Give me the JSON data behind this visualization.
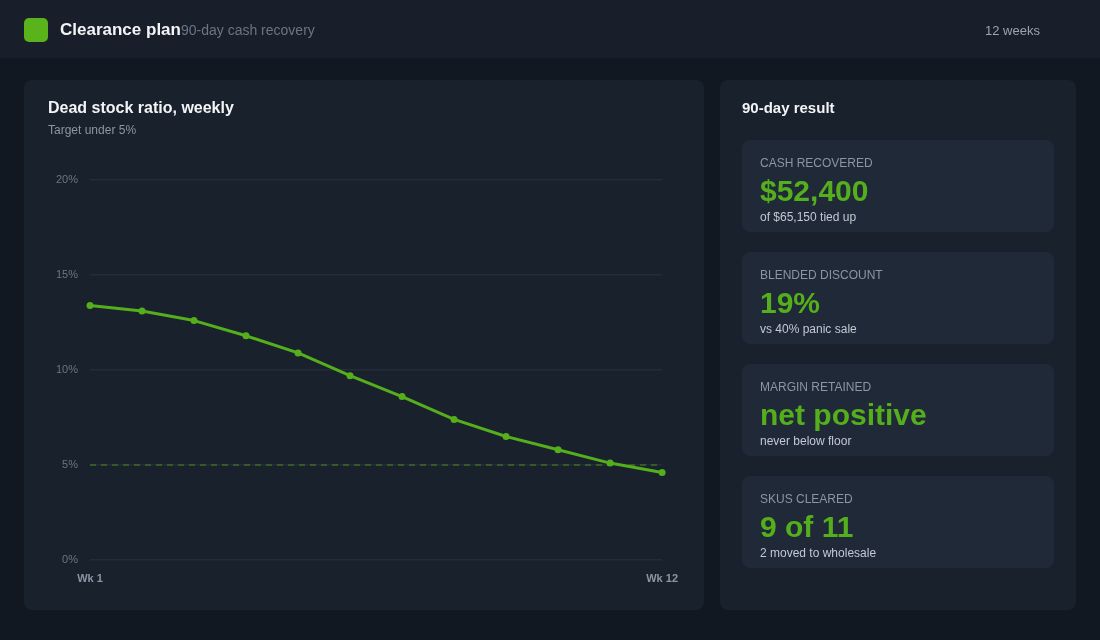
{
  "chart_data": [
    {
      "type": "other",
      "title": "Clearance plan",
      "subtitle": "90-day cash recovery",
      "annotations": [
        "12 weeks"
      ]
    },
    {
      "type": "line",
      "title": "Dead stock ratio, weekly",
      "subtitle": "Target under 5%",
      "categories": [
        "Wk 1",
        null,
        null,
        null,
        null,
        null,
        null,
        null,
        null,
        null,
        null,
        "Wk 12"
      ],
      "values": [
        13.4,
        13.1,
        12.6,
        11.8,
        10.9,
        9.7,
        8.6,
        7.4,
        6.5,
        5.8,
        5.1,
        4.6
      ],
      "color": "#55ae1b",
      "ylim": [
        0,
        20
      ],
      "yticks": [
        {
          "value": 0,
          "label": "0%"
        },
        {
          "value": 5,
          "label": "5%"
        },
        {
          "value": 10,
          "label": "10%"
        },
        {
          "value": 15,
          "label": "15%"
        },
        {
          "value": 20,
          "label": "20%"
        }
      ],
      "grid": "y",
      "marker": "circle",
      "line_style": "solid",
      "ref_lines": [
        {
          "axis": "y",
          "value": 5,
          "color": "#3f6b23",
          "line_style": "dashed"
        }
      ]
    },
    {
      "type": "other",
      "title": "90-day result",
      "color": "#55ae1b",
      "annotations": [
        "CASH RECOVERED",
        "$52,400",
        "of $65,150 tied up",
        "BLENDED DISCOUNT",
        "19%",
        "vs 40% panic sale",
        "MARGIN RETAINED",
        "net positive",
        "never below floor",
        "SKUS CLEARED",
        "9 of 11",
        "2 moved to wholesale"
      ]
    }
  ]
}
